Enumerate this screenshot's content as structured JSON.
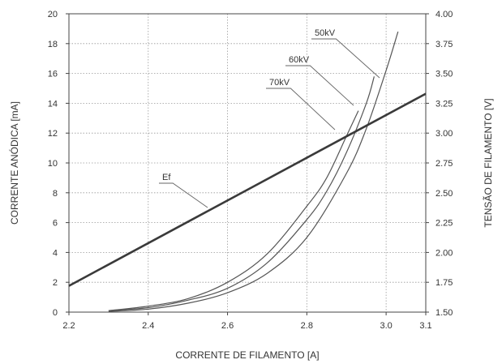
{
  "chart_data": {
    "type": "line",
    "xlabel": "CORRENTE DE FILAMENTO [A]",
    "ylabel_left": "CORRENTE ANÓDICA [mA]",
    "ylabel_right": "TENSÃO DE FILAMENTO [V]",
    "xlim": [
      2.2,
      3.1
    ],
    "ylim_left": [
      0,
      20
    ],
    "ylim_right": [
      1.5,
      4.0
    ],
    "x_ticks": [
      "2.2",
      "2.4",
      "2.6",
      "2.8",
      "3.0",
      "3.1"
    ],
    "x_tick_values": [
      2.2,
      2.4,
      2.6,
      2.8,
      3.0,
      3.1
    ],
    "y_ticks_left": [
      "0",
      "2",
      "4",
      "6",
      "8",
      "10",
      "12",
      "14",
      "16",
      "18",
      "20"
    ],
    "y_tick_values_left": [
      0,
      2,
      4,
      6,
      8,
      10,
      12,
      14,
      16,
      18,
      20
    ],
    "y_ticks_right": [
      "1.50",
      "1.75",
      "2.00",
      "2.25",
      "2.50",
      "2.75",
      "3.00",
      "3.25",
      "3.50",
      "3.75",
      "4.00"
    ],
    "y_tick_values_right": [
      1.5,
      1.75,
      2.0,
      2.25,
      2.5,
      2.75,
      3.0,
      3.25,
      3.5,
      3.75,
      4.0
    ],
    "grid": "dotted",
    "series": [
      {
        "name": "70kV",
        "axis": "left",
        "x": [
          2.3,
          2.4,
          2.5,
          2.6,
          2.7,
          2.8,
          2.85,
          2.9,
          2.93
        ],
        "y": [
          0.1,
          0.4,
          0.9,
          2.0,
          3.9,
          7.1,
          9.0,
          11.8,
          13.5
        ]
      },
      {
        "name": "60kV",
        "axis": "left",
        "x": [
          2.3,
          2.4,
          2.5,
          2.6,
          2.7,
          2.8,
          2.85,
          2.9,
          2.95,
          2.97
        ],
        "y": [
          0.1,
          0.3,
          0.8,
          1.6,
          3.3,
          6.2,
          8.1,
          10.7,
          14.0,
          15.8
        ]
      },
      {
        "name": "50kV",
        "axis": "left",
        "x": [
          2.3,
          2.4,
          2.5,
          2.6,
          2.7,
          2.8,
          2.9,
          2.95,
          3.0,
          3.03
        ],
        "y": [
          0.05,
          0.2,
          0.6,
          1.3,
          2.6,
          5.0,
          9.3,
          12.3,
          16.2,
          18.8
        ]
      },
      {
        "name": "Ef",
        "axis": "right",
        "x": [
          2.2,
          3.1
        ],
        "y": [
          1.72,
          3.33
        ]
      }
    ]
  }
}
